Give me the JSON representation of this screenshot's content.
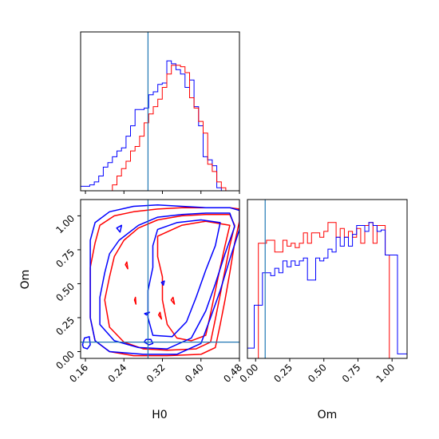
{
  "chart_data": {
    "type": "corner",
    "colors": {
      "run_a": "#ff0000",
      "run_b": "#0000ff",
      "truth": "#1f77b4"
    },
    "truth": {
      "H0": 0.29,
      "Om": 0.07
    },
    "panels": [
      {
        "id": "hist-h0",
        "type": "histogram",
        "xlim": [
          0.13,
          0.48
        ],
        "bin_edges": [
          0.13,
          0.14,
          0.15,
          0.16,
          0.17,
          0.18,
          0.19,
          0.2,
          0.21,
          0.22,
          0.23,
          0.24,
          0.25,
          0.26,
          0.27,
          0.28,
          0.29,
          0.3,
          0.31,
          0.32,
          0.33,
          0.34,
          0.35,
          0.36,
          0.37,
          0.38,
          0.39,
          0.4,
          0.41,
          0.42,
          0.43,
          0.44,
          0.45,
          0.46,
          0.47,
          0.48
        ],
        "series": [
          {
            "color_key": "run_b",
            "counts": [
              0.03,
              0.03,
              0.04,
              0.06,
              0.1,
              0.16,
              0.19,
              0.23,
              0.27,
              0.29,
              0.37,
              0.44,
              0.55,
              0.55,
              0.56,
              0.65,
              0.67,
              0.72,
              0.73,
              0.88,
              0.86,
              0.82,
              0.79,
              0.7,
              0.75,
              0.57,
              0.44,
              0.23,
              0.21,
              0.17,
              0.02,
              0.0,
              0.0,
              0.0,
              0.0
            ]
          },
          {
            "color_key": "run_a",
            "counts": [
              0.0,
              0.0,
              0.0,
              0.0,
              0.0,
              0.0,
              0.0,
              0.04,
              0.1,
              0.15,
              0.2,
              0.27,
              0.3,
              0.37,
              0.46,
              0.52,
              0.57,
              0.62,
              0.7,
              0.79,
              0.85,
              0.85,
              0.84,
              0.8,
              0.63,
              0.56,
              0.47,
              0.39,
              0.18,
              0.13,
              0.06,
              0.02,
              0.0,
              0.0,
              0.0
            ]
          }
        ]
      },
      {
        "id": "hist-om",
        "type": "histogram",
        "xlim": [
          -0.06,
          1.11
        ],
        "xticks": [
          "0.00",
          "0.25",
          "0.50",
          "0.75",
          "1.00"
        ],
        "xtick_values": [
          0.0,
          0.25,
          0.5,
          0.75,
          1.0
        ],
        "xlabel": "Om",
        "bin_edges": [
          -0.06,
          -0.01,
          0.02,
          0.05,
          0.08,
          0.11,
          0.14,
          0.17,
          0.2,
          0.23,
          0.26,
          0.29,
          0.32,
          0.35,
          0.38,
          0.41,
          0.44,
          0.47,
          0.5,
          0.53,
          0.56,
          0.59,
          0.62,
          0.65,
          0.68,
          0.71,
          0.74,
          0.77,
          0.8,
          0.83,
          0.86,
          0.89,
          0.92,
          0.95,
          0.98,
          1.01,
          1.04,
          1.07,
          1.11
        ],
        "series": [
          {
            "color_key": "run_a",
            "counts": [
              0.0,
              0.0,
              0.78,
              0.78,
              0.8,
              0.8,
              0.72,
              0.72,
              0.8,
              0.76,
              0.78,
              0.75,
              0.78,
              0.85,
              0.78,
              0.85,
              0.85,
              0.82,
              0.86,
              0.92,
              0.92,
              0.82,
              0.88,
              0.82,
              0.86,
              0.82,
              0.88,
              0.78,
              0.9,
              0.92,
              0.78,
              0.9,
              0.9,
              0.7,
              0.0,
              0.0,
              0.0,
              0.0
            ]
          },
          {
            "color_key": "run_b",
            "counts": [
              0.07,
              0.36,
              0.36,
              0.58,
              0.58,
              0.56,
              0.61,
              0.58,
              0.66,
              0.62,
              0.66,
              0.63,
              0.66,
              0.68,
              0.53,
              0.53,
              0.68,
              0.66,
              0.68,
              0.74,
              0.72,
              0.82,
              0.76,
              0.82,
              0.76,
              0.84,
              0.9,
              0.9,
              0.86,
              0.92,
              0.9,
              0.86,
              0.87,
              0.7,
              0.7,
              0.7,
              0.03,
              0.03
            ]
          }
        ]
      },
      {
        "id": "contour-h0-om",
        "type": "contour",
        "xlim": [
          0.15,
          0.48
        ],
        "ylim": [
          -0.05,
          1.12
        ],
        "xticks": [
          "0.16",
          "0.24",
          "0.32",
          "0.40",
          "0.48"
        ],
        "xtick_values": [
          0.16,
          0.24,
          0.32,
          0.4,
          0.48
        ],
        "yticks": [
          "0.00",
          "0.25",
          "0.50",
          "0.75",
          "1.00"
        ],
        "ytick_values": [
          0.0,
          0.25,
          0.5,
          0.75,
          1.0
        ],
        "xlabel": "H0",
        "ylabel": "Om",
        "series": [
          {
            "color_key": "run_a",
            "contours": [
              [
                [
                  0.19,
                  0.93
                ],
                [
                  0.22,
                  1.0
                ],
                [
                  0.26,
                  1.03
                ],
                [
                  0.31,
                  1.05
                ],
                [
                  0.36,
                  1.06
                ],
                [
                  0.41,
                  1.06
                ],
                [
                  0.46,
                  1.06
                ],
                [
                  0.48,
                  1.05
                ],
                [
                  0.48,
                  0.96
                ],
                [
                  0.47,
                  0.8
                ],
                [
                  0.46,
                  0.58
                ],
                [
                  0.45,
                  0.38
                ],
                [
                  0.44,
                  0.2
                ],
                [
                  0.43,
                  0.03
                ],
                [
                  0.4,
                  -0.02
                ],
                [
                  0.33,
                  -0.03
                ],
                [
                  0.26,
                  -0.03
                ],
                [
                  0.21,
                  0.0
                ],
                [
                  0.18,
                  0.08
                ],
                [
                  0.17,
                  0.25
                ],
                [
                  0.17,
                  0.45
                ],
                [
                  0.17,
                  0.62
                ],
                [
                  0.18,
                  0.8
                ]
              ],
              [
                [
                  0.24,
                  0.82
                ],
                [
                  0.27,
                  0.91
                ],
                [
                  0.31,
                  0.97
                ],
                [
                  0.36,
                  1.0
                ],
                [
                  0.41,
                  1.01
                ],
                [
                  0.46,
                  1.01
                ],
                [
                  0.47,
                  0.93
                ],
                [
                  0.46,
                  0.78
                ],
                [
                  0.45,
                  0.6
                ],
                [
                  0.44,
                  0.42
                ],
                [
                  0.43,
                  0.24
                ],
                [
                  0.42,
                  0.07
                ],
                [
                  0.39,
                  0.02
                ],
                [
                  0.33,
                  0.01
                ],
                [
                  0.28,
                  0.02
                ],
                [
                  0.24,
                  0.07
                ],
                [
                  0.21,
                  0.18
                ],
                [
                  0.2,
                  0.38
                ],
                [
                  0.21,
                  0.55
                ],
                [
                  0.22,
                  0.7
                ]
              ],
              [
                [
                  0.31,
                  0.85
                ],
                [
                  0.36,
                  0.93
                ],
                [
                  0.41,
                  0.96
                ],
                [
                  0.46,
                  0.93
                ],
                [
                  0.45,
                  0.78
                ],
                [
                  0.44,
                  0.62
                ],
                [
                  0.43,
                  0.45
                ],
                [
                  0.42,
                  0.28
                ],
                [
                  0.41,
                  0.12
                ],
                [
                  0.38,
                  0.08
                ],
                [
                  0.35,
                  0.1
                ],
                [
                  0.33,
                  0.2
                ],
                [
                  0.32,
                  0.38
                ],
                [
                  0.32,
                  0.55
                ],
                [
                  0.31,
                  0.7
                ]
              ],
              [
                [
                  0.243,
                  0.64
                ],
                [
                  0.248,
                  0.61
                ],
                [
                  0.246,
                  0.66
                ]
              ],
              [
                [
                  0.262,
                  0.38
                ],
                [
                  0.265,
                  0.35
                ],
                [
                  0.264,
                  0.4
                ]
              ],
              [
                [
                  0.312,
                  0.27
                ],
                [
                  0.318,
                  0.24
                ],
                [
                  0.315,
                  0.29
                ]
              ],
              [
                [
                  0.338,
                  0.38
                ],
                [
                  0.345,
                  0.35
                ],
                [
                  0.342,
                  0.4
                ]
              ]
            ]
          },
          {
            "color_key": "run_b",
            "contours": [
              [
                [
                  0.18,
                  0.95
                ],
                [
                  0.21,
                  1.03
                ],
                [
                  0.26,
                  1.07
                ],
                [
                  0.31,
                  1.08
                ],
                [
                  0.36,
                  1.07
                ],
                [
                  0.41,
                  1.06
                ],
                [
                  0.46,
                  1.06
                ],
                [
                  0.48,
                  1.04
                ],
                [
                  0.48,
                  0.9
                ],
                [
                  0.46,
                  0.68
                ],
                [
                  0.44,
                  0.45
                ],
                [
                  0.42,
                  0.25
                ],
                [
                  0.4,
                  0.06
                ],
                [
                  0.35,
                  -0.02
                ],
                [
                  0.28,
                  -0.02
                ],
                [
                  0.21,
                  0.0
                ],
                [
                  0.18,
                  0.08
                ],
                [
                  0.17,
                  0.25
                ],
                [
                  0.17,
                  0.45
                ],
                [
                  0.17,
                  0.65
                ],
                [
                  0.17,
                  0.82
                ]
              ],
              [
                [
                  0.23,
                  0.82
                ],
                [
                  0.27,
                  0.93
                ],
                [
                  0.31,
                  0.99
                ],
                [
                  0.36,
                  1.01
                ],
                [
                  0.41,
                  1.02
                ],
                [
                  0.46,
                  1.02
                ],
                [
                  0.47,
                  0.92
                ],
                [
                  0.45,
                  0.72
                ],
                [
                  0.43,
                  0.5
                ],
                [
                  0.41,
                  0.3
                ],
                [
                  0.38,
                  0.1
                ],
                [
                  0.33,
                  0.02
                ],
                [
                  0.27,
                  0.03
                ],
                [
                  0.22,
                  0.08
                ],
                [
                  0.19,
                  0.2
                ],
                [
                  0.19,
                  0.4
                ],
                [
                  0.2,
                  0.58
                ],
                [
                  0.21,
                  0.72
                ]
              ],
              [
                [
                  0.31,
                  0.9
                ],
                [
                  0.35,
                  0.95
                ],
                [
                  0.4,
                  0.97
                ],
                [
                  0.44,
                  0.95
                ],
                [
                  0.43,
                  0.78
                ],
                [
                  0.41,
                  0.6
                ],
                [
                  0.39,
                  0.4
                ],
                [
                  0.37,
                  0.22
                ],
                [
                  0.34,
                  0.11
                ],
                [
                  0.3,
                  0.12
                ],
                [
                  0.29,
                  0.25
                ],
                [
                  0.29,
                  0.45
                ],
                [
                  0.3,
                  0.62
                ],
                [
                  0.3,
                  0.78
                ]
              ],
              [
                [
                  0.154,
                  0.05
                ],
                [
                  0.158,
                  0.1
                ],
                [
                  0.168,
                  0.11
                ],
                [
                  0.17,
                  0.05
                ],
                [
                  0.164,
                  0.02
                ],
                [
                  0.156,
                  0.03
                ]
              ],
              [
                [
                  0.225,
                  0.91
                ],
                [
                  0.235,
                  0.93
                ],
                [
                  0.232,
                  0.88
                ]
              ],
              [
                [
                  0.283,
                  0.28
                ],
                [
                  0.293,
                  0.29
                ],
                [
                  0.287,
                  0.27
                ]
              ],
              [
                [
                  0.282,
                  0.07
                ],
                [
                  0.286,
                  0.09
                ],
                [
                  0.296,
                  0.09
                ],
                [
                  0.3,
                  0.06
                ],
                [
                  0.292,
                  0.05
                ]
              ],
              [
                [
                  0.318,
                  0.51
                ],
                [
                  0.324,
                  0.52
                ],
                [
                  0.322,
                  0.49
                ]
              ]
            ]
          }
        ]
      }
    ]
  }
}
